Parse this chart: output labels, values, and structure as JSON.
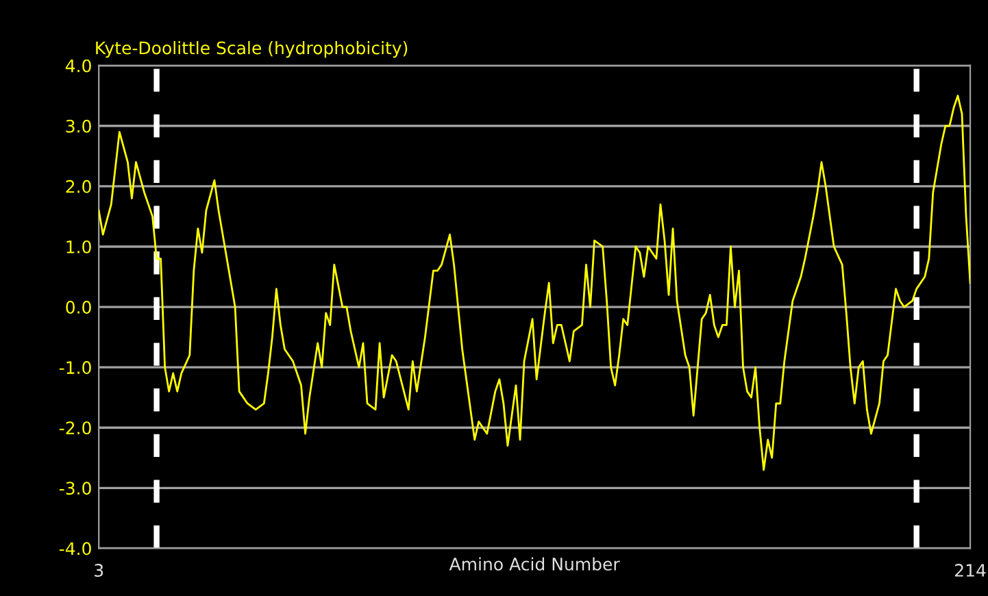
{
  "chart_data": {
    "type": "line",
    "title": "Kyte-Doolittle Scale (hydrophobicity)",
    "xlabel": "Amino Acid Number",
    "xlim": [
      3,
      214
    ],
    "xticks": [
      3,
      214
    ],
    "ylim": [
      -4,
      4
    ],
    "yticks": [
      {
        "value": -4,
        "label": "-4.0"
      },
      {
        "value": -3,
        "label": "-3.0"
      },
      {
        "value": -2,
        "label": "-2.0"
      },
      {
        "value": -1,
        "label": "-1.0"
      },
      {
        "value": 0,
        "label": "0.0"
      },
      {
        "value": 1,
        "label": "1.0"
      },
      {
        "value": 2,
        "label": "2.0"
      },
      {
        "value": 3,
        "label": "3.0"
      },
      {
        "value": 4,
        "label": "4.0"
      }
    ],
    "grid": "y",
    "legend": false,
    "marker": "none",
    "line_style": "solid",
    "ref_lines": [
      {
        "axis": "x",
        "value": 17,
        "color": "#ffffff",
        "line_style": "dashed"
      },
      {
        "axis": "x",
        "value": 201,
        "color": "#ffffff",
        "line_style": "dashed"
      }
    ],
    "series": [
      {
        "color": "#ffff00",
        "x": [
          3,
          4,
          6,
          8,
          10,
          11,
          12,
          14,
          16,
          17,
          18,
          19,
          20,
          21,
          22,
          23,
          25,
          26,
          27,
          28,
          29,
          31,
          32,
          34,
          36,
          37,
          39,
          41,
          43,
          44,
          45,
          46,
          47,
          48,
          50,
          52,
          53,
          54,
          56,
          57,
          58,
          59,
          60,
          62,
          63,
          64,
          66,
          67,
          68,
          70,
          71,
          72,
          74,
          75,
          78,
          79,
          80,
          82,
          84,
          85,
          86,
          88,
          89,
          91,
          93,
          94,
          95,
          97,
          99,
          100,
          101,
          102,
          104,
          105,
          106,
          108,
          109,
          111,
          112,
          113,
          114,
          115,
          117,
          118,
          120,
          121,
          122,
          123,
          125,
          126,
          127,
          128,
          129,
          130,
          131,
          133,
          134,
          135,
          136,
          138,
          139,
          140,
          141,
          142,
          143,
          145,
          146,
          147,
          148,
          149,
          150,
          151,
          152,
          153,
          154,
          155,
          156,
          157,
          158,
          159,
          160,
          161,
          162,
          163,
          164,
          165,
          166,
          167,
          168,
          169,
          171,
          173,
          174,
          176,
          177,
          178,
          179,
          181,
          183,
          184,
          185,
          186,
          187,
          188,
          189,
          190,
          192,
          193,
          194,
          196,
          197,
          198,
          200,
          201,
          203,
          204,
          205,
          207,
          208,
          209,
          210,
          211,
          212,
          213,
          214
        ],
        "values": [
          1.6,
          1.2,
          1.7,
          2.9,
          2.4,
          1.8,
          2.4,
          1.9,
          1.5,
          0.8,
          0.8,
          -1.0,
          -1.4,
          -1.1,
          -1.4,
          -1.1,
          -0.8,
          0.6,
          1.3,
          0.9,
          1.6,
          2.1,
          1.6,
          0.8,
          0.0,
          -1.4,
          -1.6,
          -1.7,
          -1.6,
          -1.1,
          -0.5,
          0.3,
          -0.3,
          -0.7,
          -0.9,
          -1.3,
          -2.1,
          -1.5,
          -0.6,
          -1.0,
          -0.1,
          -0.3,
          0.7,
          0.0,
          0.0,
          -0.4,
          -1.0,
          -0.6,
          -1.6,
          -1.7,
          -0.6,
          -1.5,
          -0.8,
          -0.9,
          -1.7,
          -0.9,
          -1.4,
          -0.5,
          0.6,
          0.6,
          0.7,
          1.2,
          0.7,
          -0.7,
          -1.7,
          -2.2,
          -1.9,
          -2.1,
          -1.4,
          -1.2,
          -1.6,
          -2.3,
          -1.3,
          -2.2,
          -0.9,
          -0.2,
          -1.2,
          -0.1,
          0.4,
          -0.6,
          -0.3,
          -0.3,
          -0.9,
          -0.4,
          -0.3,
          0.7,
          0.0,
          1.1,
          1.0,
          0.1,
          -1.0,
          -1.3,
          -0.8,
          -0.2,
          -0.3,
          1.0,
          0.9,
          0.5,
          1.0,
          0.8,
          1.7,
          1.1,
          0.2,
          1.3,
          0.1,
          -0.8,
          -1.0,
          -1.8,
          -1.0,
          -0.2,
          -0.1,
          0.2,
          -0.3,
          -0.5,
          -0.3,
          -0.3,
          1.0,
          0.0,
          0.6,
          -1.0,
          -1.4,
          -1.5,
          -1.0,
          -2.0,
          -2.7,
          -2.2,
          -2.5,
          -1.6,
          -1.6,
          -0.9,
          0.1,
          0.5,
          0.8,
          1.5,
          1.9,
          2.4,
          2.0,
          1.0,
          0.7,
          -0.1,
          -1.0,
          -1.6,
          -1.0,
          -0.9,
          -1.7,
          -2.1,
          -1.6,
          -0.9,
          -0.8,
          0.3,
          0.1,
          0.0,
          0.1,
          0.3,
          0.5,
          0.8,
          1.9,
          2.7,
          3.0,
          3.0,
          3.3,
          3.5,
          3.2,
          1.5,
          0.4
        ]
      }
    ]
  }
}
